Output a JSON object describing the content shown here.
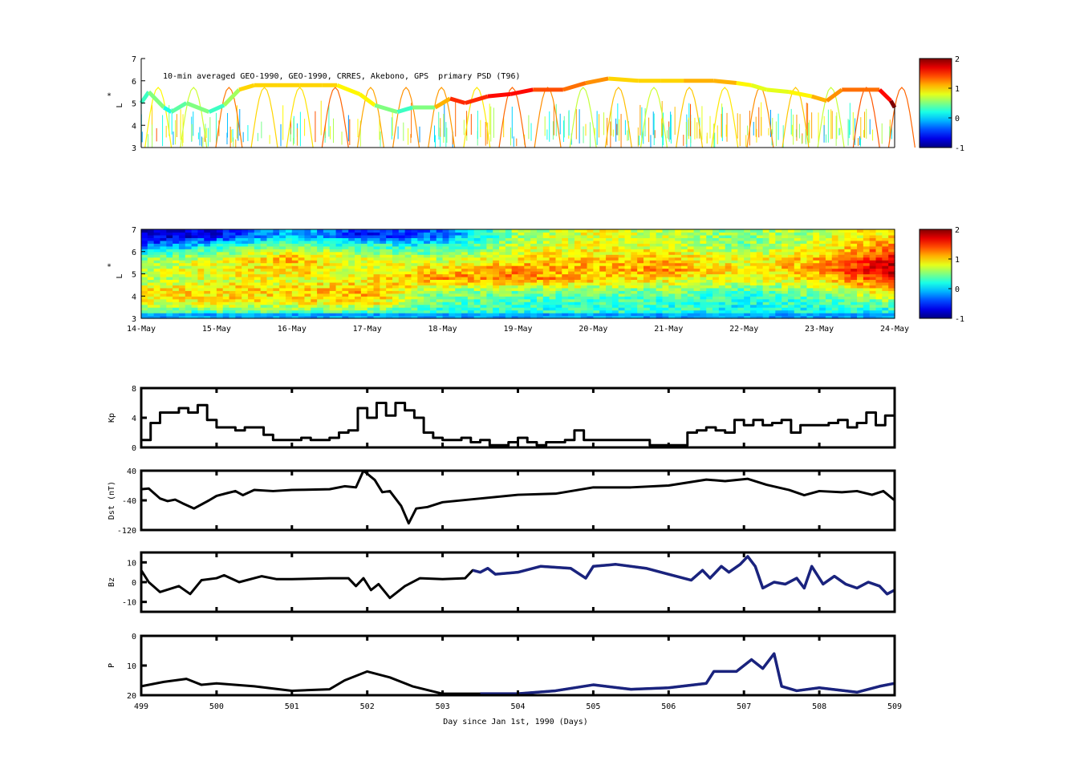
{
  "chart_data": [
    {
      "type": "scatter",
      "panel": "psd-observed",
      "title": "10-min averaged GEO-1990, GEO-1990, CRRES, Akebono, GPS  primary PSD (T96)",
      "ylabel": "L*",
      "ylabel_star": "*",
      "ylabel_main": "L",
      "ylim": [
        3,
        7
      ],
      "yticks": [
        "3",
        "4",
        "5",
        "6",
        "7"
      ],
      "xlim": [
        499,
        509
      ],
      "colorbar": {
        "range": [
          -1,
          2
        ],
        "ticks": [
          "2",
          "1",
          "0",
          "-1"
        ]
      },
      "geo_track": [
        [
          499.0,
          5.0,
          0.3
        ],
        [
          499.1,
          5.5,
          0.5
        ],
        [
          499.3,
          4.8,
          0.2
        ],
        [
          499.4,
          4.6,
          0.4
        ],
        [
          499.6,
          5.0,
          0.5
        ],
        [
          499.9,
          4.6,
          0.3
        ],
        [
          500.1,
          4.9,
          0.6
        ],
        [
          500.3,
          5.6,
          1.0
        ],
        [
          500.5,
          5.8,
          1.0
        ],
        [
          500.8,
          5.8,
          1.0
        ],
        [
          501.1,
          5.8,
          1.0
        ],
        [
          501.4,
          5.8,
          1.0
        ],
        [
          501.6,
          5.8,
          0.9
        ],
        [
          501.9,
          5.4,
          0.9
        ],
        [
          502.1,
          4.9,
          0.5
        ],
        [
          502.4,
          4.6,
          0.3
        ],
        [
          502.6,
          4.8,
          0.5
        ],
        [
          502.9,
          4.8,
          1.1
        ],
        [
          503.1,
          5.2,
          1.5
        ],
        [
          503.3,
          5.0,
          1.5
        ],
        [
          503.6,
          5.3,
          1.6
        ],
        [
          503.9,
          5.4,
          1.6
        ],
        [
          504.2,
          5.6,
          1.4
        ],
        [
          504.6,
          5.6,
          1.3
        ],
        [
          504.9,
          5.9,
          1.2
        ],
        [
          505.2,
          6.1,
          1.0
        ],
        [
          505.6,
          6.0,
          1.0
        ],
        [
          505.9,
          6.0,
          1.0
        ],
        [
          506.2,
          6.0,
          1.1
        ],
        [
          506.6,
          6.0,
          1.1
        ],
        [
          506.9,
          5.9,
          0.9
        ],
        [
          507.1,
          5.8,
          0.8
        ],
        [
          507.3,
          5.6,
          0.8
        ],
        [
          507.6,
          5.5,
          0.9
        ],
        [
          507.9,
          5.3,
          1.1
        ],
        [
          508.1,
          5.1,
          1.2
        ],
        [
          508.3,
          5.6,
          1.3
        ],
        [
          508.6,
          5.6,
          1.3
        ],
        [
          508.8,
          5.6,
          1.6
        ],
        [
          508.95,
          5.1,
          2.0
        ],
        [
          509.0,
          4.8,
          2.0
        ]
      ]
    },
    {
      "type": "heatmap",
      "panel": "psd-reanalysis",
      "ylabel_star": "*",
      "ylabel_main": "L",
      "ylim": [
        3,
        7
      ],
      "yticks": [
        "3",
        "4",
        "5",
        "6",
        "7"
      ],
      "xticklabels": [
        "14-May",
        "15-May",
        "16-May",
        "17-May",
        "18-May",
        "19-May",
        "20-May",
        "21-May",
        "22-May",
        "23-May",
        "24-May"
      ],
      "colorbar": {
        "range": [
          -1,
          2
        ],
        "ticks": [
          "2",
          "1",
          "0",
          "-1"
        ]
      },
      "l_bins": [
        3.25,
        3.75,
        4.25,
        4.75,
        5.25,
        5.75,
        6.25,
        6.75
      ],
      "days": [
        499,
        500,
        501,
        502,
        503,
        504,
        505,
        506,
        507,
        508,
        509
      ],
      "values": [
        [
          0.2,
          0.8,
          0.9,
          0.6,
          0.7,
          0.5,
          -0.3,
          -0.8
        ],
        [
          0.3,
          0.9,
          1.0,
          0.8,
          0.9,
          0.7,
          0.2,
          -0.7
        ],
        [
          0.3,
          0.9,
          1.0,
          0.8,
          1.0,
          1.1,
          0.5,
          0.0
        ],
        [
          0.3,
          1.0,
          1.1,
          0.9,
          0.8,
          0.7,
          0.3,
          -0.6
        ],
        [
          0.2,
          0.4,
          0.5,
          1.2,
          1.0,
          0.6,
          0.2,
          -0.3
        ],
        [
          0.2,
          0.3,
          0.5,
          1.3,
          1.2,
          0.9,
          0.7,
          0.6
        ],
        [
          0.2,
          0.3,
          0.5,
          1.0,
          1.1,
          1.0,
          0.8,
          0.8
        ],
        [
          0.2,
          0.3,
          0.5,
          0.9,
          1.2,
          1.0,
          0.8,
          0.7
        ],
        [
          0.1,
          0.2,
          0.3,
          0.8,
          0.9,
          0.7,
          0.5,
          0.5
        ],
        [
          0.1,
          0.3,
          0.6,
          0.9,
          1.2,
          1.1,
          0.8,
          0.7
        ],
        [
          0.1,
          0.5,
          1.0,
          1.6,
          1.9,
          1.6,
          1.3,
          1.0
        ]
      ]
    },
    {
      "type": "line",
      "panel": "kp",
      "ylabel": "Kp",
      "ylim": [
        0,
        8
      ],
      "yticks": [
        "0",
        "4",
        "8"
      ],
      "x_start": 499,
      "x_step": 0.125,
      "step": true,
      "values": [
        1,
        3.3,
        4.7,
        4.7,
        5.3,
        4.7,
        5.7,
        3.7,
        2.7,
        2.7,
        2.3,
        2.7,
        2.7,
        1.7,
        1,
        1,
        1,
        1.3,
        1,
        1,
        1.3,
        2,
        2.3,
        5.3,
        4,
        6,
        4.3,
        6,
        5,
        4,
        2,
        1.3,
        1,
        1,
        1.3,
        0.7,
        1,
        0.3,
        0.3,
        0.7,
        1.3,
        0.7,
        0.3,
        0.7,
        0.7,
        1,
        2.3,
        1,
        1,
        1,
        1,
        1,
        1,
        1,
        0.3,
        0.3,
        0.3,
        0.3,
        2,
        2.3,
        2.7,
        2.3,
        2,
        3.7,
        3,
        3.7,
        3,
        3.3,
        3.7,
        2,
        3,
        3,
        3,
        3.3,
        3.7,
        2.7,
        3.3,
        4.7,
        3,
        4.3
      ]
    },
    {
      "type": "line",
      "panel": "dst",
      "ylabel": "Dst (nT)",
      "ylim": [
        -120,
        40
      ],
      "yticks": [
        "40",
        "-40",
        "-120"
      ],
      "points": [
        [
          499,
          -10
        ],
        [
          499.1,
          -8
        ],
        [
          499.25,
          -35
        ],
        [
          499.35,
          -42
        ],
        [
          499.45,
          -38
        ],
        [
          499.55,
          -48
        ],
        [
          499.7,
          -62
        ],
        [
          499.9,
          -40
        ],
        [
          500,
          -28
        ],
        [
          500.15,
          -20
        ],
        [
          500.25,
          -15
        ],
        [
          500.35,
          -26
        ],
        [
          500.5,
          -12
        ],
        [
          500.75,
          -15
        ],
        [
          501,
          -12
        ],
        [
          501.25,
          -11
        ],
        [
          501.5,
          -10
        ],
        [
          501.7,
          -2
        ],
        [
          501.85,
          -5
        ],
        [
          501.95,
          40
        ],
        [
          502.1,
          15
        ],
        [
          502.2,
          -18
        ],
        [
          502.3,
          -15
        ],
        [
          502.45,
          -55
        ],
        [
          502.55,
          -102
        ],
        [
          502.65,
          -62
        ],
        [
          502.8,
          -58
        ],
        [
          503,
          -45
        ],
        [
          503.5,
          -35
        ],
        [
          504,
          -25
        ],
        [
          504.5,
          -22
        ],
        [
          505,
          -5
        ],
        [
          505.5,
          -5
        ],
        [
          506,
          0
        ],
        [
          506.5,
          16
        ],
        [
          506.75,
          12
        ],
        [
          507.05,
          18
        ],
        [
          507.3,
          2
        ],
        [
          507.6,
          -12
        ],
        [
          507.8,
          -26
        ],
        [
          508,
          -15
        ],
        [
          508.3,
          -18
        ],
        [
          508.5,
          -15
        ],
        [
          508.7,
          -25
        ],
        [
          508.85,
          -15
        ],
        [
          509,
          -40
        ]
      ]
    },
    {
      "type": "line",
      "panel": "bz",
      "ylabel": "Bz",
      "ylim": [
        -15,
        15
      ],
      "yticks": [
        "10",
        "0",
        "-10"
      ],
      "series_colors": {
        "hourly": "#000000",
        "high_res": "#1a237e"
      },
      "high_res_start": 503.4,
      "points": [
        [
          499,
          6
        ],
        [
          499.1,
          0
        ],
        [
          499.25,
          -5
        ],
        [
          499.5,
          -2
        ],
        [
          499.65,
          -6
        ],
        [
          499.8,
          1
        ],
        [
          500,
          2
        ],
        [
          500.1,
          3.5
        ],
        [
          500.3,
          0
        ],
        [
          500.6,
          3
        ],
        [
          500.8,
          1.5
        ],
        [
          501,
          1.5
        ],
        [
          501.5,
          2
        ],
        [
          501.75,
          2
        ],
        [
          501.85,
          -2
        ],
        [
          501.95,
          2
        ],
        [
          502.05,
          -4
        ],
        [
          502.15,
          -1
        ],
        [
          502.3,
          -8
        ],
        [
          502.5,
          -2
        ],
        [
          502.7,
          2
        ],
        [
          503,
          1.5
        ],
        [
          503.3,
          2
        ],
        [
          503.4,
          6
        ],
        [
          503.5,
          5
        ],
        [
          503.6,
          7
        ],
        [
          503.7,
          4
        ],
        [
          504,
          5
        ],
        [
          504.3,
          8
        ],
        [
          504.7,
          7
        ],
        [
          504.9,
          2
        ],
        [
          505,
          8
        ],
        [
          505.3,
          9
        ],
        [
          505.7,
          7
        ],
        [
          506,
          4
        ],
        [
          506.3,
          1
        ],
        [
          506.45,
          6
        ],
        [
          506.55,
          2
        ],
        [
          506.7,
          8
        ],
        [
          506.8,
          5
        ],
        [
          506.95,
          9
        ],
        [
          507.05,
          13
        ],
        [
          507.15,
          8
        ],
        [
          507.25,
          -3
        ],
        [
          507.4,
          0
        ],
        [
          507.55,
          -1
        ],
        [
          507.7,
          2
        ],
        [
          507.8,
          -3
        ],
        [
          507.9,
          8
        ],
        [
          508.05,
          -1
        ],
        [
          508.2,
          3
        ],
        [
          508.35,
          -1
        ],
        [
          508.5,
          -3
        ],
        [
          508.65,
          0
        ],
        [
          508.8,
          -2
        ],
        [
          508.9,
          -6
        ],
        [
          509,
          -4
        ]
      ]
    },
    {
      "type": "line",
      "panel": "pressure",
      "ylabel": "P",
      "ylim": [
        0,
        20
      ],
      "yticks": [
        "0",
        "10",
        "20"
      ],
      "xticks": [
        "499",
        "500",
        "501",
        "502",
        "503",
        "504",
        "505",
        "506",
        "507",
        "508",
        "509"
      ],
      "xlabel": "Day since Jan 1st, 1990 (Days)",
      "high_res_start": 503.4,
      "points": [
        [
          499,
          3
        ],
        [
          499.3,
          4.5
        ],
        [
          499.6,
          5.5
        ],
        [
          499.8,
          3.5
        ],
        [
          500,
          4
        ],
        [
          500.5,
          3
        ],
        [
          501,
          1.5
        ],
        [
          501.5,
          2
        ],
        [
          501.7,
          5
        ],
        [
          502,
          8
        ],
        [
          502.3,
          6
        ],
        [
          502.6,
          3
        ],
        [
          503,
          0.5
        ],
        [
          503.5,
          0.5
        ],
        [
          504,
          0.5
        ],
        [
          504.5,
          1.5
        ],
        [
          505,
          3.5
        ],
        [
          505.5,
          2
        ],
        [
          506,
          2.5
        ],
        [
          506.5,
          4
        ],
        [
          506.6,
          8
        ],
        [
          506.9,
          8
        ],
        [
          507.1,
          12
        ],
        [
          507.25,
          9
        ],
        [
          507.4,
          14
        ],
        [
          507.5,
          3
        ],
        [
          507.7,
          1.5
        ],
        [
          508,
          2.5
        ],
        [
          508.5,
          1
        ],
        [
          508.8,
          3
        ],
        [
          509,
          4
        ]
      ]
    }
  ]
}
